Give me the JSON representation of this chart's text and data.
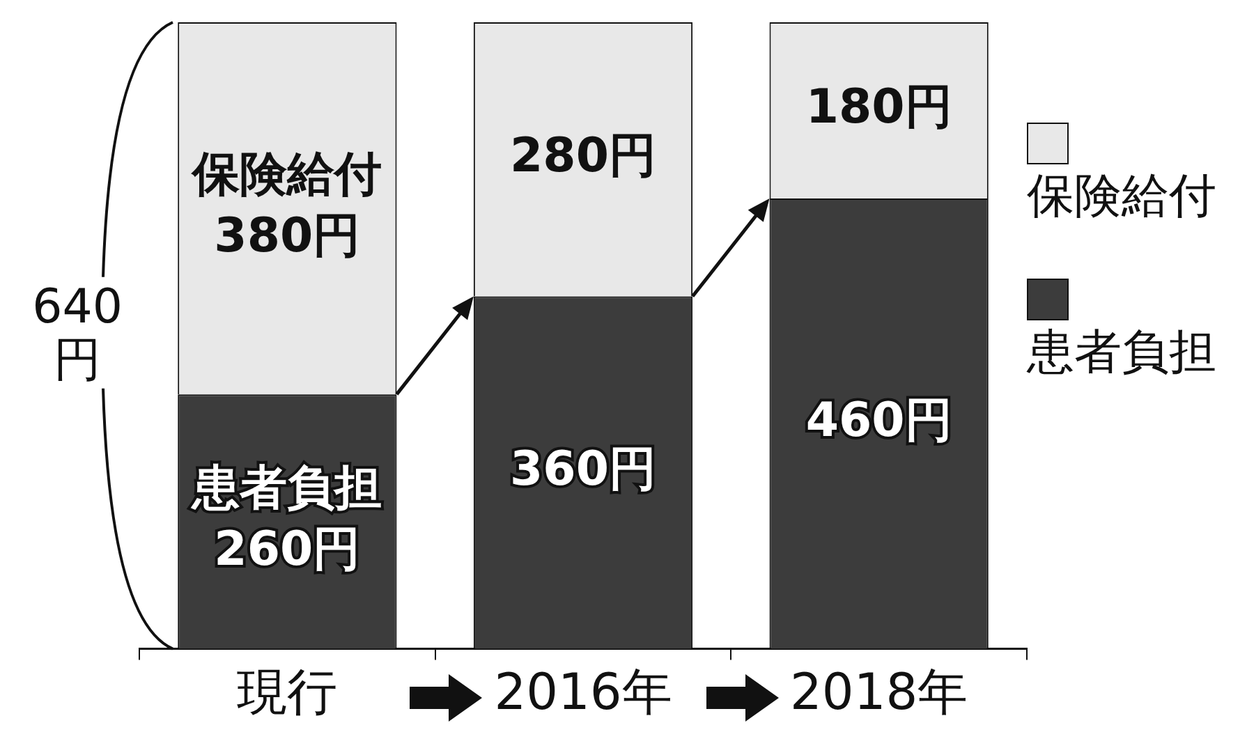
{
  "chart_data": {
    "type": "bar",
    "stacked": true,
    "categories": [
      "現行",
      "2016年",
      "2018年"
    ],
    "series": [
      {
        "name": "患者負担",
        "color": "#3c3c3c",
        "values": [
          260,
          360,
          460
        ],
        "value_labels": [
          "患者負担\n260円",
          "360円",
          "460円"
        ]
      },
      {
        "name": "保険給付",
        "color": "#e8e8e8",
        "values": [
          380,
          280,
          180
        ],
        "value_labels": [
          "保険給付\n380円",
          "280円",
          "180円"
        ]
      }
    ],
    "annotations": [
      "640円"
    ],
    "legend": "right"
  }
}
